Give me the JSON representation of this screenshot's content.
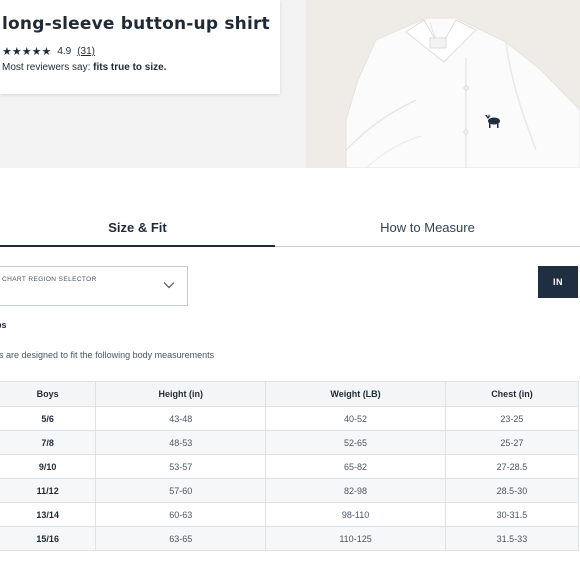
{
  "product": {
    "title": "long-sleeve button-up shirt",
    "stars": "★★★★★",
    "rating": "4.9",
    "review_count": "(31)",
    "reviewers_prefix": "Most reviewers say: ",
    "reviewers_fit": "fits true to size."
  },
  "tabs": [
    {
      "label": "Size & Fit",
      "active": true
    },
    {
      "label": "How to Measure",
      "active": false
    }
  ],
  "region_selector": {
    "label": "CHART REGION SELECTOR",
    "value": ""
  },
  "unit_toggle": {
    "label": "IN"
  },
  "section": {
    "heading": "ps",
    "description": "es are designed to fit the following body measurements"
  },
  "size_chart": {
    "headers": [
      "Boys",
      "Height (in)",
      "Weight (LB)",
      "Chest (in)"
    ],
    "rows": [
      [
        "5/6",
        "43-48",
        "40-52",
        "23-25"
      ],
      [
        "7/8",
        "48-53",
        "52-65",
        "25-27"
      ],
      [
        "9/10",
        "53-57",
        "65-82",
        "27-28.5"
      ],
      [
        "11/12",
        "57-60",
        "82-98",
        "28.5-30"
      ],
      [
        "13/14",
        "60-63",
        "98-110",
        "30-31.5"
      ],
      [
        "15/16",
        "63-65",
        "110-125",
        "31.5-33"
      ]
    ]
  },
  "colors": {
    "text_primary": "#1f2a36",
    "button_dark": "#1f2e40",
    "hero_bg": "#f3f3f3",
    "table_header_bg": "#f4f5f6"
  },
  "icons": {
    "star": "star-icon",
    "chevron": "chevron-down-icon",
    "moose_logo": "moose-logo-icon"
  }
}
